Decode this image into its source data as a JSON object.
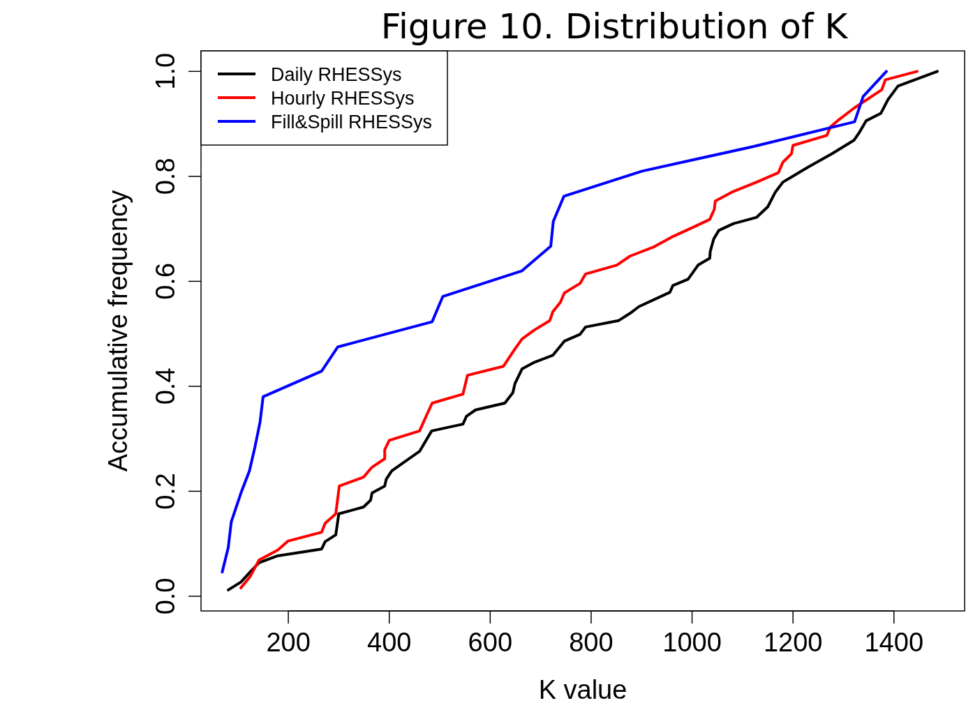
{
  "chart_data": {
    "type": "line",
    "title": "Figure 10. Distribution of K",
    "xlabel": "K value",
    "ylabel": "Accumulative frequency",
    "xlim": [
      27,
      1540
    ],
    "ylim": [
      -0.028,
      1.039
    ],
    "xticks": [
      200,
      400,
      600,
      800,
      1000,
      1200,
      1400
    ],
    "yticks": [
      {
        "value": 0,
        "label": "0.0"
      },
      {
        "value": 0.2,
        "label": "0.2"
      },
      {
        "value": 0.4,
        "label": "0.4"
      },
      {
        "value": 0.6,
        "label": "0.6"
      },
      {
        "value": 0.8,
        "label": "0.8"
      },
      {
        "value": 1,
        "label": "1.0"
      }
    ],
    "legend": "top left",
    "grid": false,
    "line_style": "solid",
    "marker": "none",
    "series": [
      {
        "name": "Daily RHESSys",
        "color": "#000000",
        "x": [
          81,
          106,
          124,
          142,
          179,
          266,
          273,
          294,
          300,
          349,
          363,
          366,
          391,
          394,
          405,
          460,
          484,
          546,
          553,
          571,
          629,
          645,
          649,
          663,
          688,
          724,
          747,
          778,
          789,
          854,
          877,
          895,
          956,
          962,
          992,
          1012,
          1035,
          1036,
          1043,
          1053,
          1082,
          1128,
          1150,
          1165,
          1180,
          1229,
          1277,
          1321,
          1331,
          1345,
          1374,
          1388,
          1408,
          1486
        ],
        "values": [
          0.012,
          0.027,
          0.046,
          0.064,
          0.077,
          0.09,
          0.104,
          0.117,
          0.157,
          0.17,
          0.183,
          0.197,
          0.21,
          0.223,
          0.239,
          0.276,
          0.315,
          0.328,
          0.343,
          0.355,
          0.368,
          0.388,
          0.405,
          0.433,
          0.446,
          0.459,
          0.486,
          0.499,
          0.513,
          0.525,
          0.539,
          0.552,
          0.579,
          0.592,
          0.604,
          0.631,
          0.644,
          0.657,
          0.681,
          0.697,
          0.71,
          0.722,
          0.742,
          0.77,
          0.789,
          0.817,
          0.843,
          0.869,
          0.883,
          0.906,
          0.92,
          0.946,
          0.972,
          1.0
        ]
      },
      {
        "name": "Hourly RHESSys",
        "color": "#ff0000",
        "x": [
          106,
          124,
          142,
          179,
          199,
          266,
          273,
          294,
          301,
          349,
          366,
          391,
          391,
          400,
          460,
          474,
          485,
          546,
          555,
          626,
          649,
          663,
          687,
          718,
          724,
          739,
          747,
          778,
          789,
          851,
          877,
          923,
          959,
          1002,
          1035,
          1044,
          1046,
          1079,
          1128,
          1171,
          1180,
          1197,
          1200,
          1267,
          1274,
          1291,
          1321,
          1376,
          1383,
          1446
        ],
        "values": [
          0.016,
          0.037,
          0.069,
          0.088,
          0.105,
          0.122,
          0.139,
          0.157,
          0.21,
          0.227,
          0.246,
          0.262,
          0.279,
          0.297,
          0.315,
          0.345,
          0.368,
          0.385,
          0.421,
          0.438,
          0.471,
          0.49,
          0.507,
          0.525,
          0.542,
          0.56,
          0.578,
          0.596,
          0.614,
          0.631,
          0.648,
          0.665,
          0.684,
          0.703,
          0.718,
          0.737,
          0.753,
          0.77,
          0.789,
          0.807,
          0.827,
          0.843,
          0.859,
          0.878,
          0.894,
          0.908,
          0.93,
          0.965,
          0.984,
          1.0
        ]
      },
      {
        "name": "Fill&Spill RHESSys",
        "color": "#0000ff",
        "x": [
          69,
          81,
          87,
          107,
          123,
          134,
          144,
          150,
          266,
          298,
          485,
          506,
          663,
          720,
          725,
          746,
          901,
          1122,
          1322,
          1339,
          1385
        ],
        "values": [
          0.046,
          0.093,
          0.142,
          0.199,
          0.239,
          0.285,
          0.332,
          0.38,
          0.429,
          0.475,
          0.523,
          0.571,
          0.62,
          0.667,
          0.714,
          0.762,
          0.81,
          0.857,
          0.904,
          0.952,
          1.0
        ]
      }
    ]
  }
}
